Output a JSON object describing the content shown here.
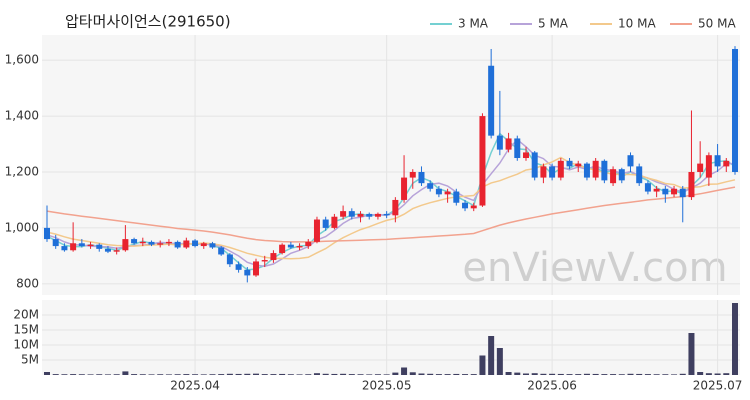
{
  "chart_data": {
    "type": "candlestick",
    "title": "압타머사이언스(291650)",
    "watermark": "enViewV.com",
    "categories": [
      null,
      null,
      null,
      null,
      null,
      null,
      null,
      null,
      null,
      null,
      null,
      null,
      null,
      null,
      null,
      null,
      null,
      "2025.04",
      null,
      null,
      null,
      null,
      null,
      null,
      null,
      null,
      null,
      null,
      null,
      null,
      null,
      null,
      null,
      null,
      null,
      null,
      null,
      null,
      null,
      "2025.05",
      null,
      null,
      null,
      null,
      null,
      null,
      null,
      null,
      null,
      null,
      null,
      null,
      null,
      null,
      null,
      null,
      null,
      null,
      "2025.06",
      null,
      null,
      null,
      null,
      null,
      null,
      null,
      null,
      null,
      null,
      null,
      null,
      null,
      null,
      null,
      null,
      null,
      null,
      "2025.07",
      null,
      null
    ],
    "open": [
      1000,
      960,
      935,
      920,
      945,
      935,
      940,
      925,
      915,
      920,
      960,
      945,
      950,
      940,
      945,
      950,
      930,
      955,
      935,
      945,
      930,
      905,
      870,
      850,
      830,
      880,
      885,
      910,
      940,
      930,
      935,
      950,
      1030,
      1000,
      1040,
      1060,
      1040,
      1050,
      1040,
      1050,
      1045,
      1100,
      1180,
      1200,
      1160,
      1140,
      1120,
      1130,
      1090,
      1070,
      1080,
      1580,
      1330,
      1280,
      1320,
      1250,
      1270,
      1180,
      1220,
      1180,
      1240,
      1220,
      1230,
      1180,
      1240,
      1160,
      1210,
      1260,
      1220,
      1160,
      1130,
      1140,
      1120,
      1140,
      1110,
      1200,
      1180,
      1260,
      1220,
      1640
    ],
    "high": [
      1080,
      975,
      945,
      1020,
      960,
      950,
      945,
      935,
      930,
      1010,
      965,
      965,
      955,
      955,
      960,
      955,
      965,
      960,
      950,
      950,
      935,
      910,
      880,
      860,
      890,
      900,
      920,
      945,
      950,
      945,
      960,
      1040,
      1040,
      1050,
      1080,
      1070,
      1060,
      1055,
      1055,
      1060,
      1110,
      1260,
      1210,
      1220,
      1170,
      1150,
      1140,
      1140,
      1100,
      1090,
      1410,
      1640,
      1490,
      1340,
      1330,
      1290,
      1275,
      1230,
      1230,
      1250,
      1250,
      1240,
      1235,
      1250,
      1245,
      1220,
      1215,
      1270,
      1230,
      1170,
      1150,
      1150,
      1150,
      1150,
      1420,
      1310,
      1270,
      1300,
      1250,
      1650
    ],
    "low": [
      950,
      925,
      915,
      915,
      930,
      925,
      915,
      910,
      905,
      915,
      940,
      935,
      935,
      930,
      935,
      925,
      925,
      930,
      925,
      925,
      900,
      860,
      840,
      805,
      825,
      860,
      875,
      905,
      925,
      920,
      925,
      945,
      990,
      995,
      1030,
      1030,
      1020,
      1030,
      1030,
      1035,
      1020,
      1090,
      1140,
      1150,
      1130,
      1110,
      1090,
      1080,
      1060,
      1060,
      1075,
      1320,
      1260,
      1270,
      1240,
      1240,
      1170,
      1160,
      1170,
      1170,
      1210,
      1200,
      1170,
      1170,
      1160,
      1150,
      1160,
      1200,
      1150,
      1120,
      1110,
      1090,
      1110,
      1020,
      1100,
      1180,
      1150,
      1200,
      1200,
      1190
    ],
    "close": [
      960,
      935,
      920,
      945,
      935,
      940,
      925,
      915,
      920,
      960,
      945,
      950,
      940,
      945,
      950,
      930,
      955,
      935,
      945,
      930,
      905,
      870,
      850,
      830,
      880,
      885,
      910,
      940,
      930,
      935,
      950,
      1030,
      1000,
      1040,
      1060,
      1040,
      1050,
      1040,
      1050,
      1045,
      1100,
      1180,
      1200,
      1160,
      1140,
      1120,
      1130,
      1090,
      1070,
      1080,
      1400,
      1330,
      1280,
      1320,
      1250,
      1270,
      1180,
      1220,
      1180,
      1240,
      1220,
      1230,
      1180,
      1240,
      1170,
      1210,
      1170,
      1220,
      1160,
      1130,
      1140,
      1120,
      1140,
      1110,
      1200,
      1230,
      1260,
      1220,
      1240,
      1200
    ],
    "up_color": "#e8232f",
    "down_color": "#1f6fd8",
    "series": [
      {
        "name": "3 MA",
        "color": "#74d0d2",
        "values": [
          970,
          955,
          938,
          933,
          933,
          940,
          933,
          927,
          920,
          932,
          942,
          952,
          945,
          945,
          945,
          942,
          945,
          940,
          945,
          937,
          927,
          902,
          875,
          850,
          853,
          865,
          892,
          912,
          927,
          935,
          938,
          972,
          993,
          1023,
          1033,
          1047,
          1050,
          1043,
          1047,
          1045,
          1065,
          1108,
          1160,
          1180,
          1167,
          1140,
          1130,
          1113,
          1097,
          1080,
          1183,
          1270,
          1337,
          1310,
          1283,
          1280,
          1233,
          1223,
          1193,
          1213,
          1213,
          1230,
          1210,
          1217,
          1197,
          1207,
          1183,
          1200,
          1183,
          1170,
          1143,
          1130,
          1133,
          1123,
          1150,
          1180,
          1230,
          1237,
          1240,
          1220
        ]
      },
      {
        "name": "5 MA",
        "color": "#b7a3d9",
        "values": [
          975,
          965,
          950,
          940,
          939,
          935,
          933,
          932,
          927,
          932,
          937,
          938,
          943,
          948,
          946,
          943,
          944,
          943,
          943,
          939,
          934,
          917,
          900,
          877,
          867,
          863,
          871,
          889,
          909,
          920,
          933,
          957,
          969,
          991,
          1016,
          1034,
          1038,
          1046,
          1048,
          1045,
          1057,
          1083,
          1115,
          1137,
          1156,
          1160,
          1150,
          1128,
          1110,
          1098,
          1154,
          1194,
          1232,
          1282,
          1316,
          1290,
          1260,
          1248,
          1220,
          1218,
          1208,
          1218,
          1210,
          1222,
          1208,
          1206,
          1194,
          1202,
          1186,
          1178,
          1164,
          1154,
          1138,
          1128,
          1142,
          1160,
          1188,
          1204,
          1230,
          1230
        ]
      },
      {
        "name": "10 MA",
        "color": "#f3c98c",
        "values": [
          985,
          978,
          968,
          960,
          955,
          950,
          945,
          940,
          937,
          936,
          935,
          937,
          939,
          940,
          942,
          939,
          942,
          944,
          946,
          943,
          938,
          930,
          920,
          909,
          902,
          895,
          891,
          891,
          890,
          891,
          895,
          911,
          926,
          947,
          965,
          980,
          994,
          1004,
          1016,
          1027,
          1034,
          1049,
          1069,
          1081,
          1090,
          1098,
          1106,
          1111,
          1113,
          1116,
          1146,
          1161,
          1169,
          1181,
          1192,
          1207,
          1212,
          1225,
          1236,
          1252,
          1234,
          1224,
          1214,
          1206,
          1198,
          1192,
          1191,
          1191,
          1189,
          1178,
          1170,
          1159,
          1155,
          1142,
          1145,
          1147,
          1156,
          1157,
          1165,
          1172
        ]
      },
      {
        "name": "50 MA",
        "color": "#f2a28e",
        "values": [
          1060,
          1055,
          1050,
          1046,
          1042,
          1038,
          1034,
          1030,
          1026,
          1022,
          1018,
          1014,
          1010,
          1006,
          1002,
          998,
          995,
          992,
          989,
          985,
          980,
          975,
          969,
          963,
          958,
          955,
          953,
          951,
          950,
          950,
          950,
          951,
          952,
          953,
          954,
          955,
          956,
          957,
          958,
          959,
          961,
          963,
          965,
          967,
          969,
          971,
          973,
          975,
          977,
          980,
          990,
          1000,
          1010,
          1018,
          1025,
          1032,
          1038,
          1044,
          1050,
          1055,
          1060,
          1065,
          1070,
          1075,
          1080,
          1084,
          1088,
          1092,
          1096,
          1100,
          1103,
          1106,
          1109,
          1112,
          1117,
          1122,
          1128,
          1134,
          1140,
          1146
        ]
      }
    ],
    "ylim": [
      760,
      1690
    ],
    "yticks": [
      800,
      {
        "value": 1000,
        "label": "1,000"
      },
      {
        "value": 1200,
        "label": "1,200"
      },
      {
        "value": 1400,
        "label": "1,400"
      },
      {
        "value": 1600,
        "label": "1,600"
      }
    ],
    "grid": true,
    "legend": "top-right",
    "volume": {
      "color": "#3f3f60",
      "values": [
        1000000,
        300000,
        250000,
        300000,
        250000,
        200000,
        250000,
        200000,
        250000,
        1200000,
        300000,
        250000,
        200000,
        250000,
        200000,
        250000,
        300000,
        250000,
        200000,
        250000,
        300000,
        400000,
        350000,
        400000,
        450000,
        300000,
        300000,
        350000,
        250000,
        200000,
        250000,
        600000,
        400000,
        350000,
        400000,
        300000,
        250000,
        200000,
        250000,
        200000,
        800000,
        2500000,
        900000,
        500000,
        400000,
        300000,
        300000,
        350000,
        300000,
        300000,
        6500000,
        13000000,
        9000000,
        1000000,
        800000,
        500000,
        600000,
        400000,
        400000,
        350000,
        300000,
        300000,
        400000,
        350000,
        300000,
        300000,
        250000,
        400000,
        350000,
        300000,
        250000,
        250000,
        200000,
        400000,
        14000000,
        1000000,
        600000,
        500000,
        600000,
        24000000
      ],
      "ylim": [
        0,
        25000000
      ],
      "yticks": [
        {
          "value": 5000000,
          "label": "5M"
        },
        {
          "value": 10000000,
          "label": "10M"
        },
        {
          "value": 15000000,
          "label": "15M"
        },
        {
          "value": 20000000,
          "label": "20M"
        }
      ]
    }
  }
}
